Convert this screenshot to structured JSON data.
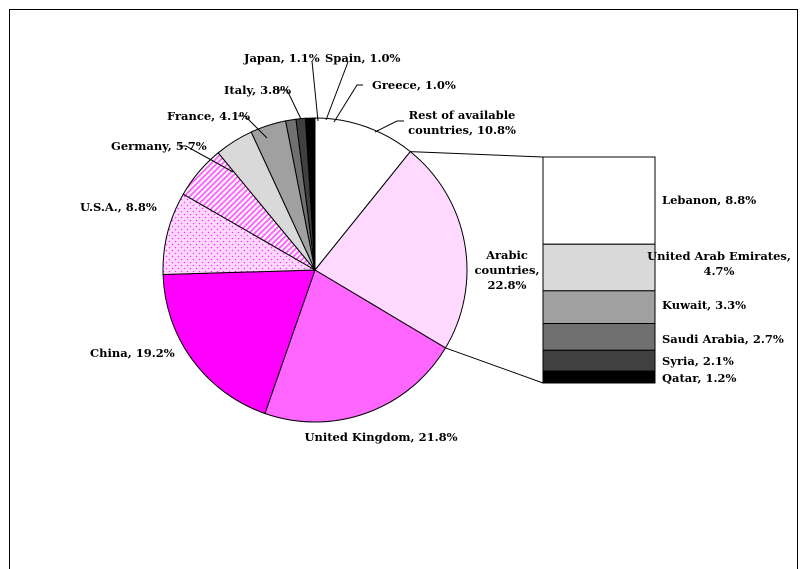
{
  "chart_data": {
    "type": "pie",
    "title": "",
    "slices": [
      {
        "label": "Rest of available countries",
        "value": 10.8,
        "color": "#ffffff",
        "pattern": "none"
      },
      {
        "label": "Arabic countries",
        "value": 22.8,
        "color": "#ffd9ff",
        "pattern": "none"
      },
      {
        "label": "United Kingdom",
        "value": 21.8,
        "color": "#ff66ff",
        "pattern": "none"
      },
      {
        "label": "China",
        "value": 19.2,
        "color": "#ff00ff",
        "pattern": "none"
      },
      {
        "label": "U.S.A.",
        "value": 8.8,
        "color": "#ffd9ff",
        "pattern": "dots"
      },
      {
        "label": "Germany",
        "value": 5.7,
        "color": "#ff66ff",
        "pattern": "diagonal-stripes"
      },
      {
        "label": "France",
        "value": 4.1,
        "color": "#d9d9d9",
        "pattern": "none"
      },
      {
        "label": "Italy",
        "value": 3.8,
        "color": "#a0a0a0",
        "pattern": "none"
      },
      {
        "label": "Japan",
        "value": 1.1,
        "color": "#707070",
        "pattern": "none"
      },
      {
        "label": "Spain",
        "value": 1.0,
        "color": "#404040",
        "pattern": "none"
      },
      {
        "label": "Greece",
        "value": 1.0,
        "color": "#000000",
        "pattern": "none"
      }
    ],
    "breakdown_of": "Arabic countries",
    "breakdown": [
      {
        "label": "Lebanon",
        "value": 8.8,
        "color": "#ffffff"
      },
      {
        "label": "United Arab Emirates",
        "value": 4.7,
        "color": "#d9d9d9"
      },
      {
        "label": "Kuwait",
        "value": 3.3,
        "color": "#a0a0a0"
      },
      {
        "label": "Saudi Arabia",
        "value": 2.7,
        "color": "#707070"
      },
      {
        "label": "Syria",
        "value": 2.1,
        "color": "#404040"
      },
      {
        "label": "Qatar",
        "value": 1.2,
        "color": "#000000"
      }
    ]
  },
  "labels": {
    "rest": [
      "Rest of available",
      "countries, 10.8%"
    ],
    "arabic": [
      "Arabic",
      "countries,",
      "22.8%"
    ],
    "uk": [
      "United Kingdom, 21.8%"
    ],
    "china": [
      "China, 19.2%"
    ],
    "usa": [
      "U.S.A., 8.8%"
    ],
    "germany": [
      "Germany, 5.7%"
    ],
    "france": [
      "France, 4.1%"
    ],
    "italy": [
      "Italy, 3.8%"
    ],
    "japan": [
      "Japan, 1.1%"
    ],
    "spain": [
      "Spain, 1.0%"
    ],
    "greece": [
      "Greece, 1.0%"
    ],
    "lebanon": [
      "Lebanon, 8.8%"
    ],
    "uae": [
      "United Arab Emirates,",
      "4.7%"
    ],
    "kuwait": [
      "Kuwait, 3.3%"
    ],
    "saudi": [
      "Saudi Arabia, 2.7%"
    ],
    "syria": [
      "Syria, 2.1%"
    ],
    "qatar": [
      "Qatar, 1.2%"
    ]
  }
}
